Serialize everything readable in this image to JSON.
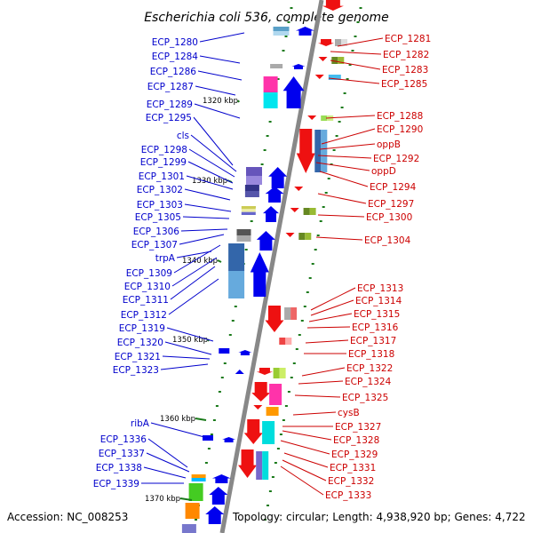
{
  "title": "Escherichia coli 536, complete genome",
  "footer": {
    "accession": "Accession: NC_008253",
    "topology": "Topology: circular; Length: 4,938,920 bp; Genes: 4,722"
  },
  "colors": {
    "left_label": "#0000cc",
    "right_label": "#cc0000",
    "backbone": "#808080",
    "tick": "#1a7a1a"
  },
  "kbp_markers": [
    "1320 kbp",
    "1330 kbp",
    "1340 kbp",
    "1350 kbp",
    "1360 kbp",
    "1370 kbp"
  ],
  "left_labels": [
    "ECP_1280",
    "ECP_1284",
    "ECP_1286",
    "ECP_1287",
    "ECP_1289",
    "ECP_1295",
    "cls",
    "ECP_1298",
    "ECP_1299",
    "ECP_1301",
    "ECP_1302",
    "ECP_1303",
    "ECP_1305",
    "ECP_1306",
    "ECP_1307",
    "trpA",
    "ECP_1309",
    "ECP_1310",
    "ECP_1311",
    "ECP_1312",
    "ECP_1319",
    "ECP_1320",
    "ECP_1321",
    "ECP_1323",
    "ribA",
    "ECP_1336",
    "ECP_1337",
    "ECP_1338",
    "ECP_1339"
  ],
  "right_labels": [
    "ECP_1281",
    "ECP_1282",
    "ECP_1283",
    "ECP_1285",
    "ECP_1288",
    "ECP_1290",
    "oppB",
    "ECP_1292",
    "oppD",
    "ECP_1294",
    "ECP_1297",
    "ECP_1300",
    "ECP_1304",
    "ECP_1313",
    "ECP_1314",
    "ECP_1315",
    "ECP_1316",
    "ECP_1317",
    "ECP_1318",
    "ECP_1322",
    "ECP_1324",
    "ECP_1325",
    "cysB",
    "ECP_1327",
    "ECP_1328",
    "ECP_1329",
    "ECP_1331",
    "ECP_1332",
    "ECP_1333"
  ]
}
